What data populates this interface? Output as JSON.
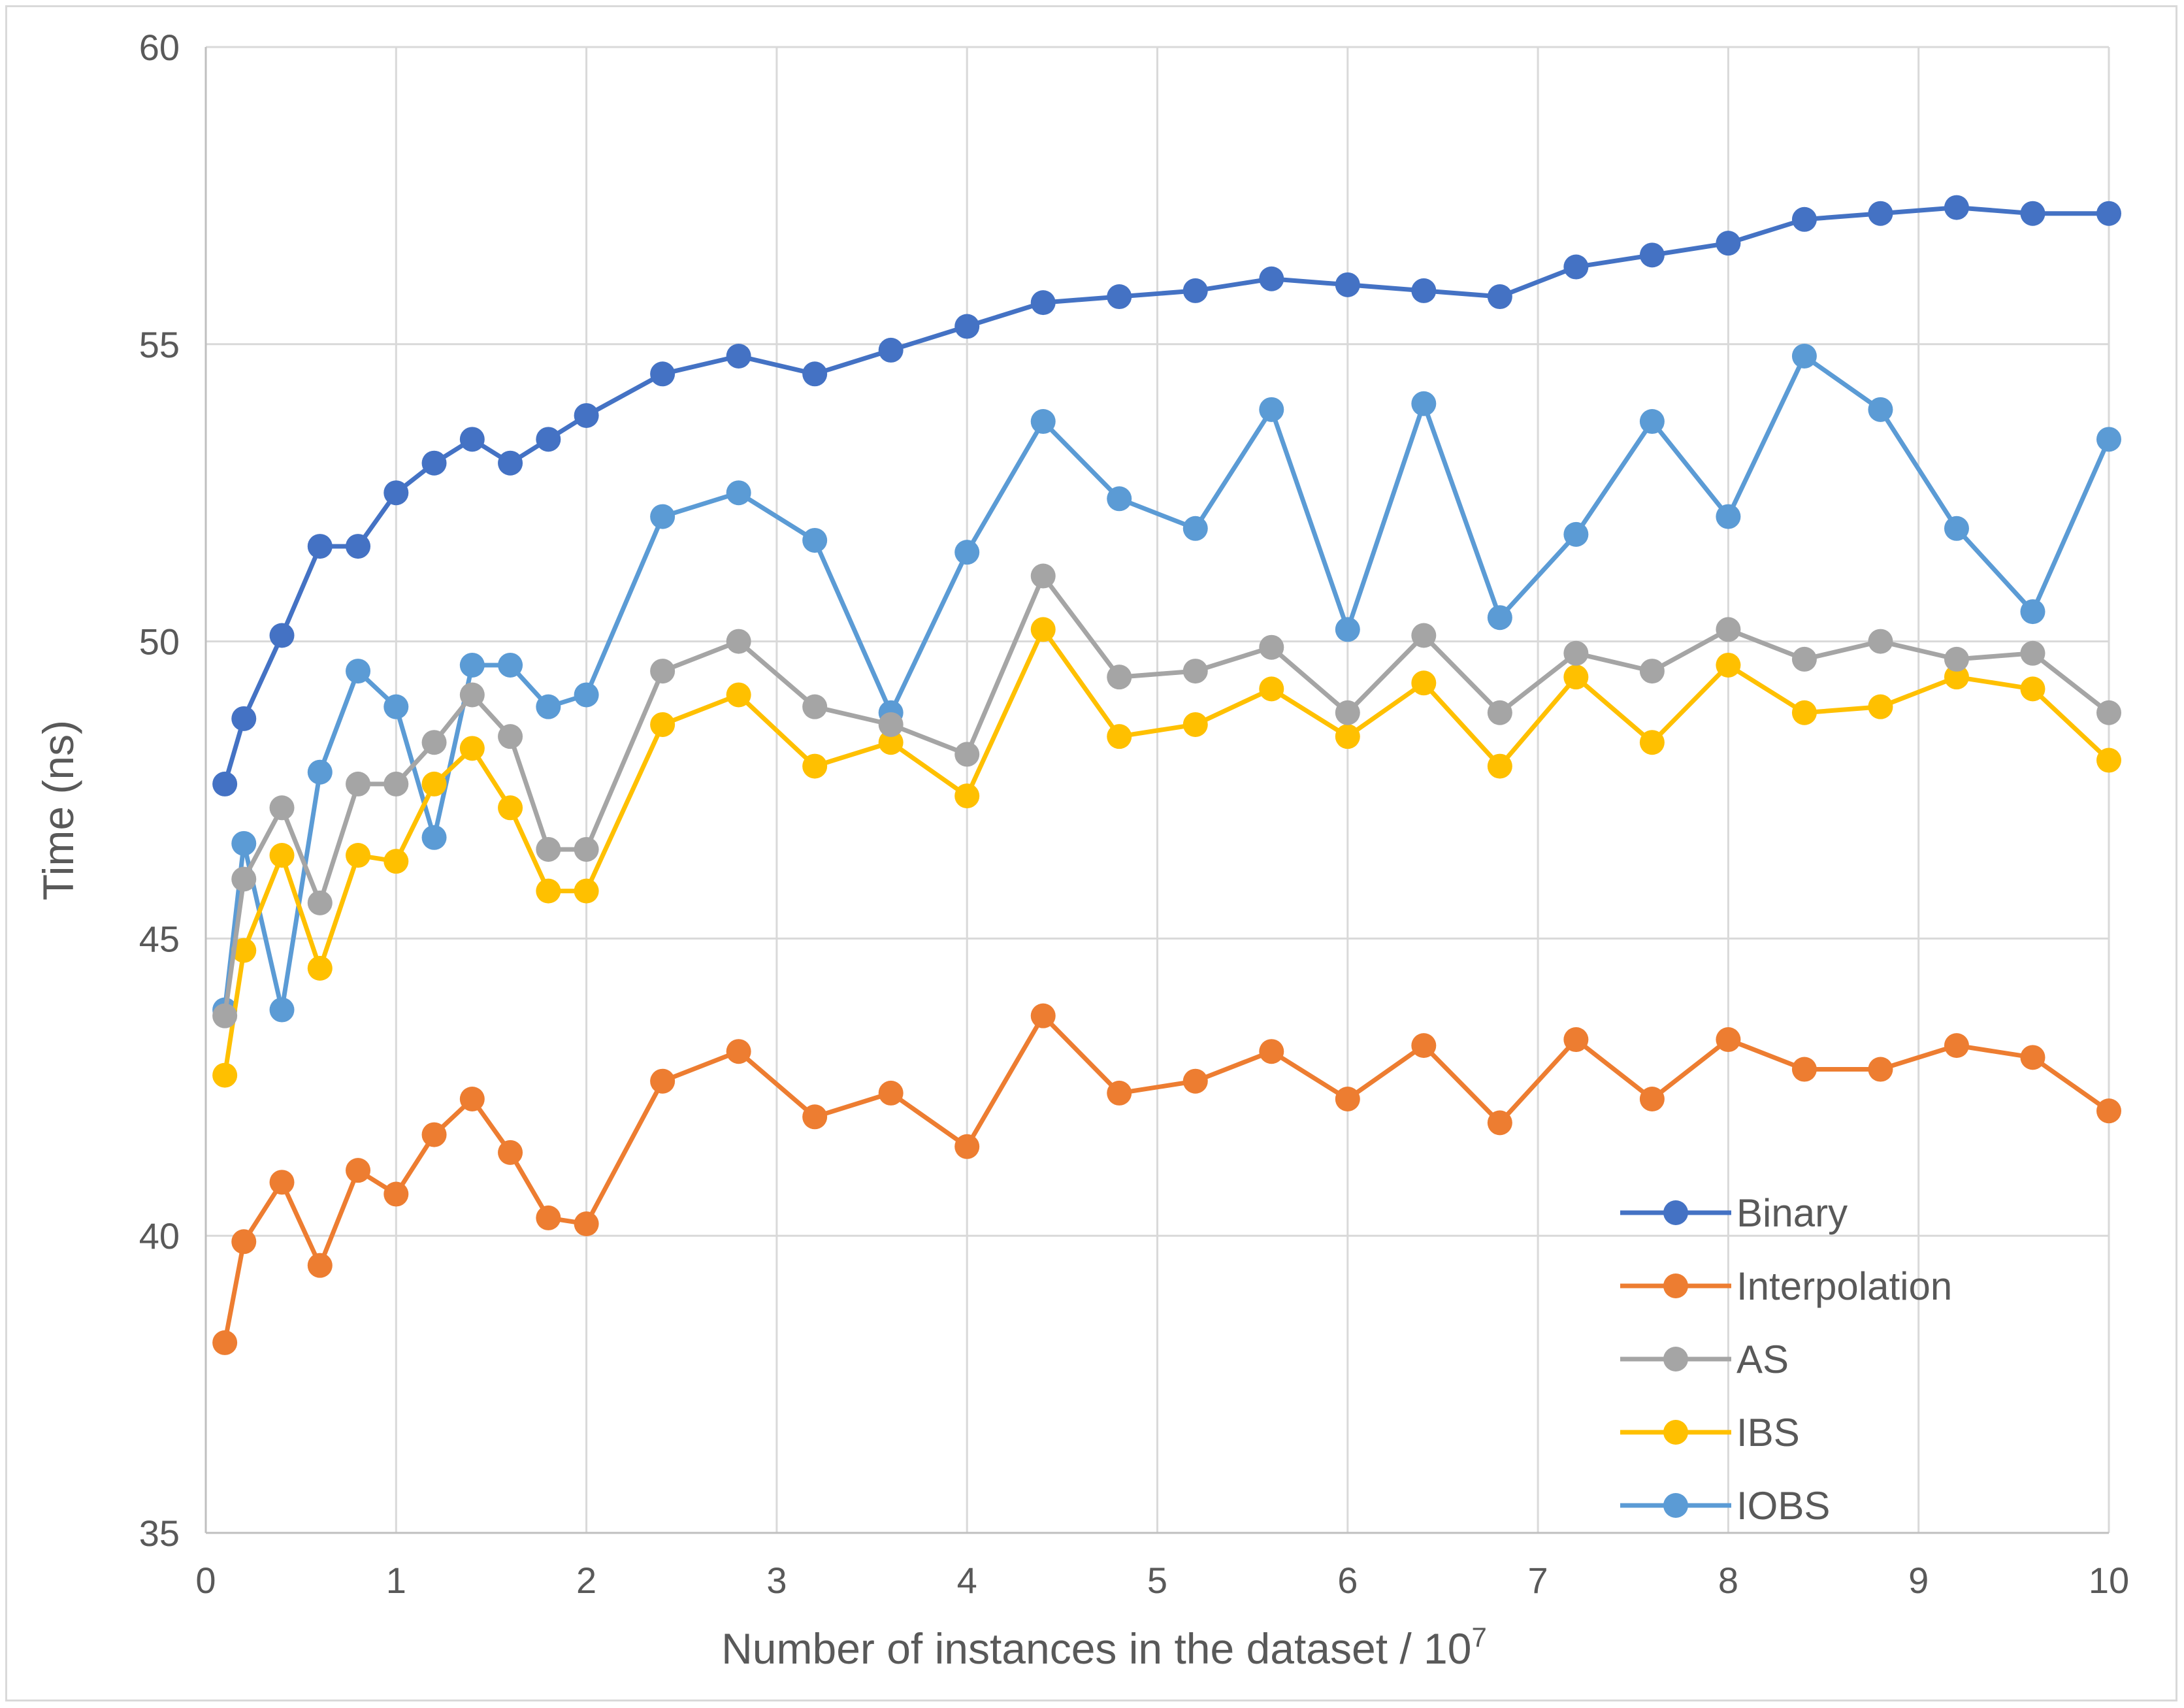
{
  "chart_data": {
    "type": "line",
    "xlabel": "Number of instances in the dataset / 10",
    "xlabel_superscript": "7",
    "ylabel": "Time (ns)",
    "xlim": [
      0,
      10
    ],
    "ylim": [
      35,
      60
    ],
    "x_ticks": [
      "0",
      "1",
      "2",
      "3",
      "4",
      "5",
      "6",
      "7",
      "8",
      "9",
      "10"
    ],
    "y_ticks": [
      "35",
      "40",
      "45",
      "50",
      "55",
      "60"
    ],
    "grid": true,
    "legend_position": "bottom-right",
    "x": [
      0.1,
      0.2,
      0.4,
      0.6,
      0.8,
      1.0,
      1.2,
      1.4,
      1.6,
      1.8,
      2.0,
      2.4,
      2.8,
      3.2,
      3.6,
      4.0,
      4.4,
      4.8,
      5.2,
      5.6,
      6.0,
      6.4,
      6.8,
      7.2,
      7.6,
      8.0,
      8.4,
      8.8,
      9.2,
      9.6,
      10.0
    ],
    "series": [
      {
        "name": "Binary",
        "color": "#4472c4",
        "values": [
          47.6,
          48.7,
          50.1,
          51.6,
          51.6,
          52.5,
          53.0,
          53.4,
          53.0,
          53.4,
          53.8,
          54.5,
          54.8,
          54.5,
          54.9,
          55.3,
          55.7,
          55.8,
          55.9,
          56.1,
          56.0,
          55.9,
          55.8,
          56.3,
          56.5,
          56.7,
          57.1,
          57.2,
          57.3,
          57.2,
          57.2
        ]
      },
      {
        "name": "Interpolation",
        "color": "#ed7d31",
        "values": [
          38.2,
          39.9,
          40.9,
          39.5,
          41.1,
          40.7,
          41.7,
          42.3,
          41.4,
          40.3,
          40.2,
          42.6,
          43.1,
          42.0,
          42.4,
          41.5,
          43.7,
          42.4,
          42.6,
          43.1,
          42.3,
          43.2,
          41.9,
          43.3,
          42.3,
          43.3,
          42.8,
          42.8,
          43.2,
          43.0,
          42.1
        ]
      },
      {
        "name": "AS",
        "color": "#a5a5a5",
        "values": [
          43.7,
          46.0,
          47.2,
          45.6,
          47.6,
          47.6,
          48.3,
          49.1,
          48.4,
          46.5,
          46.5,
          49.5,
          50.0,
          48.9,
          48.6,
          48.1,
          51.1,
          49.4,
          49.5,
          49.9,
          48.8,
          50.1,
          48.8,
          49.8,
          49.5,
          50.2,
          49.7,
          50.0,
          49.7,
          49.8,
          48.8
        ]
      },
      {
        "name": "IBS",
        "color": "#ffc000",
        "values": [
          42.7,
          44.8,
          46.4,
          44.5,
          46.4,
          46.3,
          47.6,
          48.2,
          47.2,
          45.8,
          45.8,
          48.6,
          49.1,
          47.9,
          48.3,
          47.4,
          50.2,
          48.4,
          48.6,
          49.2,
          48.4,
          49.3,
          47.9,
          49.4,
          48.3,
          49.6,
          48.8,
          48.9,
          49.4,
          49.2,
          48.0
        ]
      },
      {
        "name": "IOBS",
        "color": "#5b9bd5",
        "values": [
          43.8,
          46.6,
          43.8,
          47.8,
          49.5,
          48.9,
          46.7,
          49.6,
          49.6,
          48.9,
          49.1,
          52.1,
          52.5,
          51.7,
          48.8,
          51.5,
          53.7,
          52.4,
          51.9,
          53.9,
          50.2,
          54.0,
          50.4,
          51.8,
          53.7,
          52.1,
          54.8,
          53.9,
          51.9,
          50.5,
          53.4
        ]
      }
    ]
  }
}
